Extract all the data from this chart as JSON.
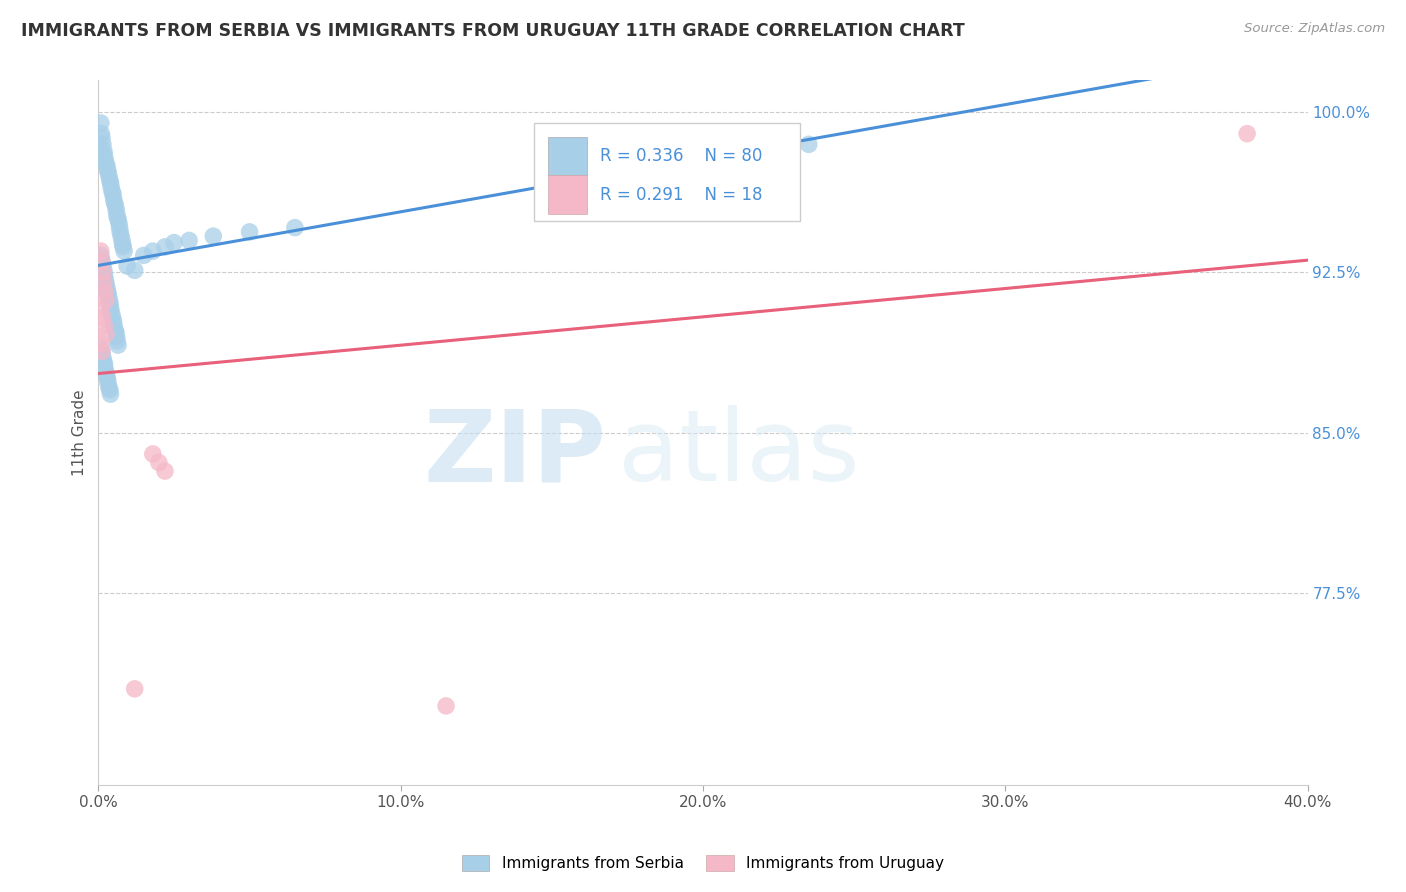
{
  "title": "IMMIGRANTS FROM SERBIA VS IMMIGRANTS FROM URUGUAY 11TH GRADE CORRELATION CHART",
  "source": "Source: ZipAtlas.com",
  "ylabel": "11th Grade",
  "serbia_label": "Immigrants from Serbia",
  "uruguay_label": "Immigrants from Uruguay",
  "R_serbia": 0.336,
  "N_serbia": 80,
  "R_uruguay": 0.291,
  "N_uruguay": 18,
  "serbia_color": "#a8cfe8",
  "uruguay_color": "#f5b8c8",
  "serbia_line_color": "#4a90d9",
  "uruguay_line_color": "#e8607a",
  "xlim": [
    0.0,
    0.4
  ],
  "ylim": [
    0.685,
    1.015
  ],
  "xtick_labels": [
    "0.0%",
    "10.0%",
    "20.0%",
    "30.0%",
    "40.0%"
  ],
  "xtick_vals": [
    0.0,
    0.1,
    0.2,
    0.3,
    0.4
  ],
  "ytick_labels_right": [
    "77.5%",
    "85.0%",
    "92.5%",
    "100.0%"
  ],
  "ytick_vals_right": [
    0.775,
    0.85,
    0.925,
    1.0
  ],
  "watermark_zip": "ZIP",
  "watermark_atlas": "atlas",
  "serbia_x": [
    0.0008,
    0.001,
    0.0012,
    0.0015,
    0.0018,
    0.002,
    0.0022,
    0.0025,
    0.0028,
    0.003,
    0.0032,
    0.0035,
    0.0038,
    0.004,
    0.0042,
    0.0045,
    0.0048,
    0.005,
    0.0052,
    0.0055,
    0.0058,
    0.006,
    0.0062,
    0.0065,
    0.0068,
    0.007,
    0.0072,
    0.0075,
    0.0078,
    0.008,
    0.0082,
    0.0085,
    0.0008,
    0.001,
    0.0012,
    0.0015,
    0.0018,
    0.002,
    0.0022,
    0.0025,
    0.0028,
    0.003,
    0.0032,
    0.0035,
    0.0038,
    0.004,
    0.0042,
    0.0045,
    0.0048,
    0.005,
    0.0052,
    0.0055,
    0.0058,
    0.006,
    0.0062,
    0.0065,
    0.001,
    0.0012,
    0.0015,
    0.0018,
    0.002,
    0.0022,
    0.0025,
    0.0028,
    0.003,
    0.0032,
    0.0035,
    0.0038,
    0.004,
    0.0095,
    0.012,
    0.015,
    0.018,
    0.022,
    0.025,
    0.03,
    0.038,
    0.05,
    0.065,
    0.235
  ],
  "serbia_y": [
    0.995,
    0.99,
    0.988,
    0.985,
    0.982,
    0.98,
    0.978,
    0.976,
    0.975,
    0.973,
    0.972,
    0.97,
    0.968,
    0.967,
    0.965,
    0.963,
    0.962,
    0.96,
    0.958,
    0.957,
    0.955,
    0.953,
    0.951,
    0.95,
    0.948,
    0.946,
    0.944,
    0.942,
    0.94,
    0.938,
    0.937,
    0.935,
    0.933,
    0.931,
    0.93,
    0.928,
    0.926,
    0.924,
    0.922,
    0.92,
    0.918,
    0.916,
    0.915,
    0.913,
    0.911,
    0.909,
    0.907,
    0.905,
    0.903,
    0.902,
    0.9,
    0.898,
    0.897,
    0.895,
    0.893,
    0.891,
    0.889,
    0.887,
    0.885,
    0.883,
    0.882,
    0.88,
    0.878,
    0.876,
    0.875,
    0.873,
    0.871,
    0.87,
    0.868,
    0.928,
    0.926,
    0.933,
    0.935,
    0.937,
    0.939,
    0.94,
    0.942,
    0.944,
    0.946,
    0.985
  ],
  "uruguay_x": [
    0.0008,
    0.0012,
    0.0015,
    0.0018,
    0.0022,
    0.0025,
    0.001,
    0.0015,
    0.002,
    0.0025,
    0.0008,
    0.0012,
    0.018,
    0.02,
    0.022,
    0.012,
    0.38,
    0.115
  ],
  "uruguay_y": [
    0.935,
    0.93,
    0.925,
    0.92,
    0.916,
    0.912,
    0.908,
    0.904,
    0.9,
    0.896,
    0.892,
    0.888,
    0.84,
    0.836,
    0.832,
    0.73,
    0.99,
    0.722
  ]
}
